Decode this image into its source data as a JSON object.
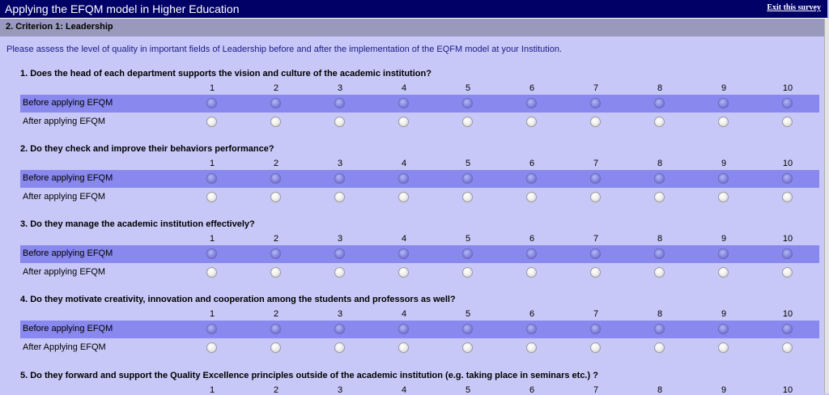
{
  "header": {
    "title": "Applying the EFQM model in Higher Education",
    "exit_label": "Exit this survey"
  },
  "section": {
    "label": "2. Criterion 1: Leadership"
  },
  "intro": "Please assess the level of quality in important fields of Leadership before and after the implementation of the EQFM model at your Institution.",
  "scale": [
    "1",
    "2",
    "3",
    "4",
    "5",
    "6",
    "7",
    "8",
    "9",
    "10"
  ],
  "questions": [
    {
      "text": "1. Does the head of each department supports the vision and culture of the academic institution?",
      "before_label": "Before applying EFQM",
      "after_label": "After applying EFQM"
    },
    {
      "text": "2. Do they check and improve their behaviors performance?",
      "before_label": "Before applying EFQM",
      "after_label": "After applying EFQM"
    },
    {
      "text": "3. Do they manage the academic institution effectively?",
      "before_label": "Before applying EFQM",
      "after_label": "After applying EFQM"
    },
    {
      "text": "4. Do they motivate creativity, innovation and cooperation among the students and professors as well?",
      "before_label": "Before applying EFQM",
      "after_label": "After Applying EFQM"
    },
    {
      "text": "5. Do they forward and support the Quality Excellence principles outside of the academic institution (e.g. taking place in seminars etc.) ?",
      "before_label": "",
      "after_label": ""
    }
  ]
}
